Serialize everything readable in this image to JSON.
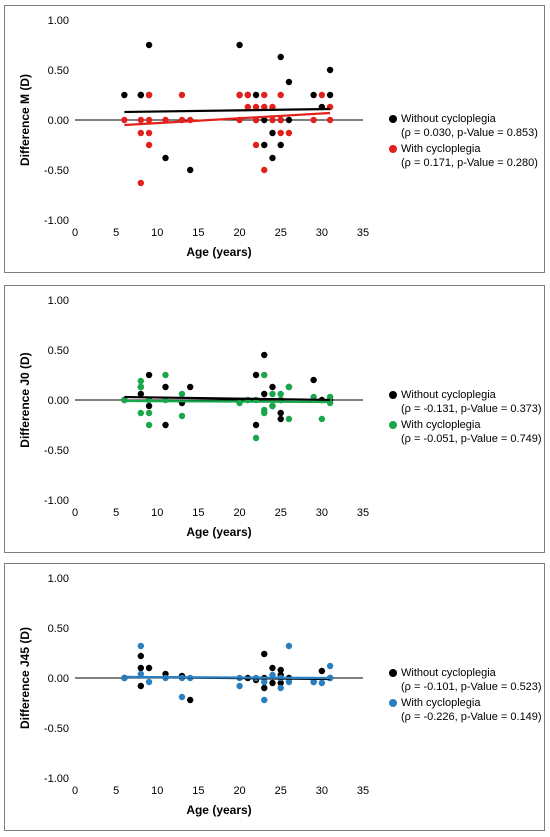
{
  "chart_data": [
    {
      "type": "scatter",
      "xlabel": "Age (years)",
      "ylabel": "Difference M (D)",
      "xlim": [
        0,
        35
      ],
      "ylim": [
        -1.0,
        1.0
      ],
      "x_ticks": [
        "0",
        "5",
        "10",
        "15",
        "20",
        "25",
        "30",
        "35"
      ],
      "y_ticks": [
        "1.00",
        "0.50",
        "0.00",
        "-0.50",
        "-1.00"
      ],
      "series": [
        {
          "name": "Without cycloplegia",
          "stat": "(ρ = 0.030, p-Value = 0.853)",
          "color": "#000000",
          "trend": [
            [
              6,
              0.08
            ],
            [
              31,
              0.11
            ]
          ],
          "points": [
            [
              6,
              0.25
            ],
            [
              8,
              0.25
            ],
            [
              8,
              0.25
            ],
            [
              9,
              0.75
            ],
            [
              9,
              0.25
            ],
            [
              11,
              -0.38
            ],
            [
              14,
              -0.5
            ],
            [
              20,
              0.75
            ],
            [
              20,
              0.25
            ],
            [
              21,
              0.25
            ],
            [
              22,
              0
            ],
            [
              22,
              0.25
            ],
            [
              23,
              -0.25
            ],
            [
              23,
              0
            ],
            [
              24,
              -0.38
            ],
            [
              24,
              -0.13
            ],
            [
              25,
              0.63
            ],
            [
              25,
              -0.25
            ],
            [
              25,
              0
            ],
            [
              26,
              0.38
            ],
            [
              26,
              0
            ],
            [
              29,
              0.25
            ],
            [
              30,
              0.13
            ],
            [
              31,
              0.5
            ],
            [
              31,
              0.25
            ]
          ]
        },
        {
          "name": "With cycloplegia",
          "stat": "(ρ = 0.171, p-Value = 0.280)",
          "color": "#e3211c",
          "trend": [
            [
              6,
              -0.05
            ],
            [
              31,
              0.07
            ]
          ],
          "points": [
            [
              6,
              0
            ],
            [
              8,
              0
            ],
            [
              8,
              -0.13
            ],
            [
              8,
              -0.63
            ],
            [
              9,
              0
            ],
            [
              9,
              -0.13
            ],
            [
              9,
              -0.25
            ],
            [
              9,
              0.25
            ],
            [
              11,
              0
            ],
            [
              13,
              0.25
            ],
            [
              13,
              0
            ],
            [
              14,
              0
            ],
            [
              20,
              0
            ],
            [
              20,
              0.25
            ],
            [
              21,
              0.13
            ],
            [
              21,
              0.25
            ],
            [
              22,
              0.13
            ],
            [
              22,
              0
            ],
            [
              22,
              -0.25
            ],
            [
              23,
              0.25
            ],
            [
              23,
              0.13
            ],
            [
              23,
              -0.5
            ],
            [
              24,
              0
            ],
            [
              24,
              0.13
            ],
            [
              25,
              0
            ],
            [
              25,
              0.25
            ],
            [
              25,
              -0.13
            ],
            [
              26,
              -0.13
            ],
            [
              29,
              0
            ],
            [
              30,
              0.25
            ],
            [
              31,
              0.13
            ],
            [
              31,
              0
            ]
          ]
        }
      ]
    },
    {
      "type": "scatter",
      "xlabel": "Age (years)",
      "ylabel": "Difference J0 (D)",
      "xlim": [
        0,
        35
      ],
      "ylim": [
        -1.0,
        1.0
      ],
      "x_ticks": [
        "0",
        "5",
        "10",
        "15",
        "20",
        "25",
        "30",
        "35"
      ],
      "y_ticks": [
        "1.00",
        "0.50",
        "0.00",
        "-0.50",
        "-1.00"
      ],
      "series": [
        {
          "name": "Without cycloplegia",
          "stat": "(ρ = -0.131, p-Value = 0.373)",
          "color": "#000000",
          "trend": [
            [
              6,
              0.03
            ],
            [
              31,
              0.0
            ]
          ],
          "points": [
            [
              6,
              0
            ],
            [
              8,
              0.13
            ],
            [
              8,
              0.06
            ],
            [
              9,
              0.25
            ],
            [
              9,
              -0.06
            ],
            [
              11,
              0.13
            ],
            [
              11,
              -0.25
            ],
            [
              13,
              -0.03
            ],
            [
              14,
              0.13
            ],
            [
              22,
              0.25
            ],
            [
              22,
              -0.25
            ],
            [
              23,
              0.45
            ],
            [
              23,
              0.06
            ],
            [
              24,
              0.13
            ],
            [
              24,
              -0.06
            ],
            [
              25,
              -0.13
            ],
            [
              25,
              -0.19
            ],
            [
              25,
              0
            ],
            [
              26,
              0.13
            ],
            [
              29,
              0.2
            ],
            [
              30,
              0
            ],
            [
              31,
              0
            ]
          ]
        },
        {
          "name": "With cycloplegia",
          "stat": "(ρ = -0.051, p-Value = 0.749)",
          "color": "#1aa64a",
          "trend": [
            [
              6,
              -0.01
            ],
            [
              31,
              -0.02
            ]
          ],
          "points": [
            [
              6,
              0
            ],
            [
              8,
              0.19
            ],
            [
              8,
              0.13
            ],
            [
              8,
              -0.13
            ],
            [
              9,
              -0.25
            ],
            [
              9,
              -0.13
            ],
            [
              9,
              0
            ],
            [
              11,
              0.25
            ],
            [
              11,
              0
            ],
            [
              13,
              0.06
            ],
            [
              13,
              -0.16
            ],
            [
              20,
              -0.03
            ],
            [
              21,
              0
            ],
            [
              22,
              -0.38
            ],
            [
              22,
              0
            ],
            [
              23,
              0.25
            ],
            [
              23,
              -0.1
            ],
            [
              23,
              -0.13
            ],
            [
              24,
              0.06
            ],
            [
              24,
              -0.06
            ],
            [
              25,
              0
            ],
            [
              25,
              0.06
            ],
            [
              26,
              0.13
            ],
            [
              26,
              -0.19
            ],
            [
              29,
              0.03
            ],
            [
              30,
              -0.19
            ],
            [
              31,
              0.03
            ],
            [
              31,
              -0.03
            ]
          ]
        }
      ]
    },
    {
      "type": "scatter",
      "xlabel": "Age (years)",
      "ylabel": "Difference J45 (D)",
      "xlim": [
        0,
        35
      ],
      "ylim": [
        -1.0,
        1.0
      ],
      "x_ticks": [
        "0",
        "5",
        "10",
        "15",
        "20",
        "25",
        "30",
        "35"
      ],
      "y_ticks": [
        "1.00",
        "0.50",
        "0.00",
        "-0.50",
        "-1.00"
      ],
      "series": [
        {
          "name": "Without cycloplegia",
          "stat": "(ρ = -0.101, p-Value = 0.523)",
          "color": "#000000",
          "trend": [
            [
              6,
              0.01
            ],
            [
              31,
              -0.01
            ]
          ],
          "points": [
            [
              6,
              0
            ],
            [
              8,
              0.22
            ],
            [
              8,
              0.1
            ],
            [
              8,
              -0.08
            ],
            [
              9,
              0.1
            ],
            [
              11,
              0.04
            ],
            [
              13,
              0.02
            ],
            [
              14,
              -0.22
            ],
            [
              21,
              0
            ],
            [
              22,
              -0.02
            ],
            [
              23,
              0.24
            ],
            [
              23,
              -0.1
            ],
            [
              23,
              0
            ],
            [
              24,
              0.1
            ],
            [
              24,
              -0.05
            ],
            [
              25,
              0.08
            ],
            [
              25,
              0.03
            ],
            [
              25,
              -0.05
            ],
            [
              26,
              0
            ],
            [
              29,
              -0.04
            ],
            [
              30,
              0.07
            ],
            [
              31,
              0
            ]
          ]
        },
        {
          "name": "With cycloplegia",
          "stat": "(ρ = -0.226, p-Value = 0.149)",
          "color": "#2a7fc0",
          "trend": [
            [
              6,
              0.01
            ],
            [
              31,
              0.0
            ]
          ],
          "points": [
            [
              6,
              0
            ],
            [
              8,
              0.32
            ],
            [
              8,
              0.04
            ],
            [
              9,
              -0.04
            ],
            [
              11,
              0
            ],
            [
              13,
              -0.19
            ],
            [
              13,
              0
            ],
            [
              14,
              0
            ],
            [
              20,
              -0.08
            ],
            [
              20,
              0
            ],
            [
              22,
              0
            ],
            [
              23,
              -0.22
            ],
            [
              23,
              -0.04
            ],
            [
              24,
              0.03
            ],
            [
              25,
              -0.1
            ],
            [
              25,
              0
            ],
            [
              26,
              0.32
            ],
            [
              26,
              -0.04
            ],
            [
              29,
              -0.04
            ],
            [
              30,
              -0.05
            ],
            [
              31,
              0.12
            ],
            [
              31,
              0
            ]
          ]
        }
      ]
    }
  ]
}
